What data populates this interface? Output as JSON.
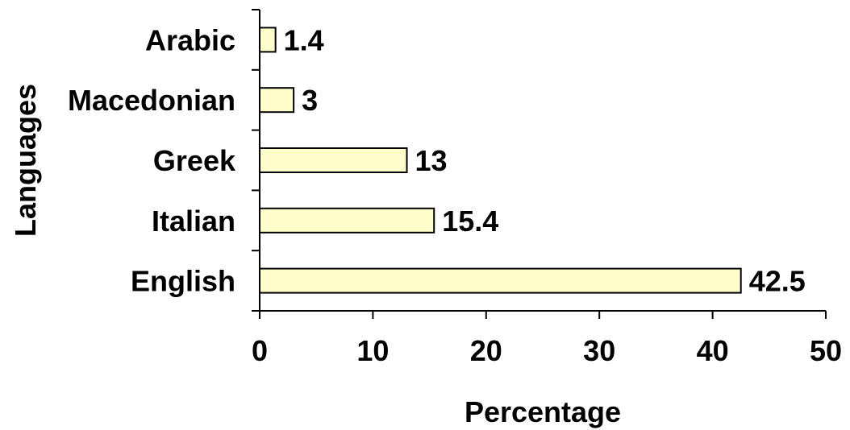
{
  "chart_data": {
    "type": "bar",
    "orientation": "horizontal",
    "categories": [
      "Arabic",
      "Macedonian",
      "Greek",
      "Italian",
      "English"
    ],
    "values": [
      1.4,
      3,
      13,
      15.4,
      42.5
    ],
    "value_labels": [
      "1.4",
      "3",
      "13",
      "15.4",
      "42.5"
    ],
    "xlabel": "Percentage",
    "ylabel": "Languages",
    "xlim": [
      0,
      50
    ],
    "xticks": [
      0,
      10,
      20,
      30,
      40,
      50
    ],
    "grid": false,
    "legend": "none",
    "bar_fill": "#ffffcc",
    "bar_stroke": "#000000"
  }
}
